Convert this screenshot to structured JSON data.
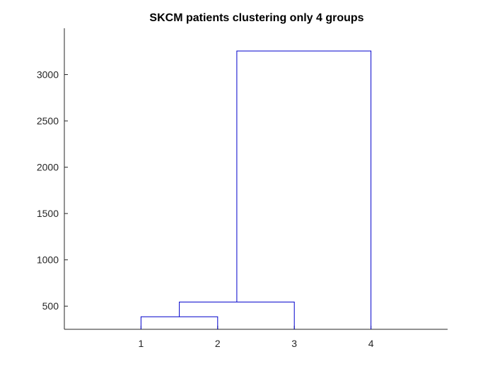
{
  "chart_data": {
    "type": "dendrogram",
    "title": "SKCM patients clustering only 4 groups",
    "xlabel": "",
    "ylabel": "",
    "leaves": [
      "1",
      "2",
      "3",
      "4"
    ],
    "x_ticks": [
      "1",
      "2",
      "3",
      "4"
    ],
    "xlim": [
      0,
      5
    ],
    "ylim": [
      250,
      3500
    ],
    "y_ticks": [
      500,
      1000,
      1500,
      2000,
      2500,
      3000
    ],
    "grid": false,
    "legend": "none",
    "line_color": "#0000cc",
    "merges": [
      {
        "left": "1",
        "right": "2",
        "height": 385
      },
      {
        "left": "1,2",
        "right": "3",
        "height": 545
      },
      {
        "left": "1,2,3",
        "right": "4",
        "height": 3255
      }
    ]
  }
}
